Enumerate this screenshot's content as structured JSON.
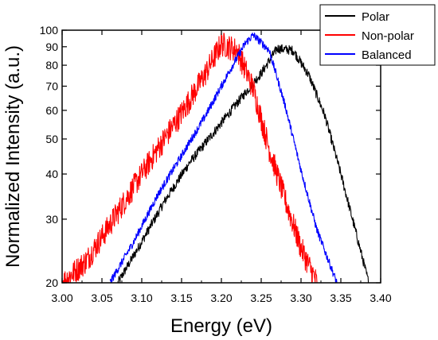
{
  "chart_data": {
    "type": "line",
    "xlabel": "Energy (eV)",
    "ylabel": "Normalized Intensity (a.u.)",
    "xlim": [
      3.0,
      3.4
    ],
    "ylim": [
      20,
      100
    ],
    "y_scale": "log",
    "x_ticks": [
      "3.00",
      "3.05",
      "3.10",
      "3.15",
      "3.20",
      "3.25",
      "3.30",
      "3.35",
      "3.40"
    ],
    "y_ticks": [
      "20",
      "30",
      "40",
      "50",
      "60",
      "70",
      "80",
      "90",
      "100"
    ],
    "legend_position": "top-right",
    "grid": false,
    "series": [
      {
        "name": "Polar",
        "color": "#000000",
        "x": [
          3.07,
          3.1,
          3.13,
          3.16,
          3.19,
          3.22,
          3.25,
          3.27,
          3.29,
          3.31,
          3.33,
          3.35,
          3.37,
          3.385
        ],
        "y": [
          20,
          26,
          34,
          43,
          52,
          63,
          76,
          89,
          88,
          75,
          58,
          40,
          27,
          20
        ]
      },
      {
        "name": "Non-polar",
        "color": "#ff0000",
        "x": [
          3.0,
          3.03,
          3.06,
          3.09,
          3.12,
          3.15,
          3.18,
          3.2,
          3.22,
          3.24,
          3.26,
          3.28,
          3.3,
          3.32
        ],
        "y": [
          20,
          23,
          29,
          37,
          47,
          59,
          76,
          92,
          88,
          69,
          47,
          34,
          25,
          20
        ]
      },
      {
        "name": "Balanced",
        "color": "#0000ff",
        "x": [
          3.06,
          3.09,
          3.12,
          3.15,
          3.18,
          3.21,
          3.23,
          3.24,
          3.26,
          3.28,
          3.3,
          3.32,
          3.345
        ],
        "y": [
          20,
          26,
          35,
          45,
          58,
          77,
          92,
          97,
          88,
          62,
          41,
          28,
          20
        ]
      }
    ]
  }
}
